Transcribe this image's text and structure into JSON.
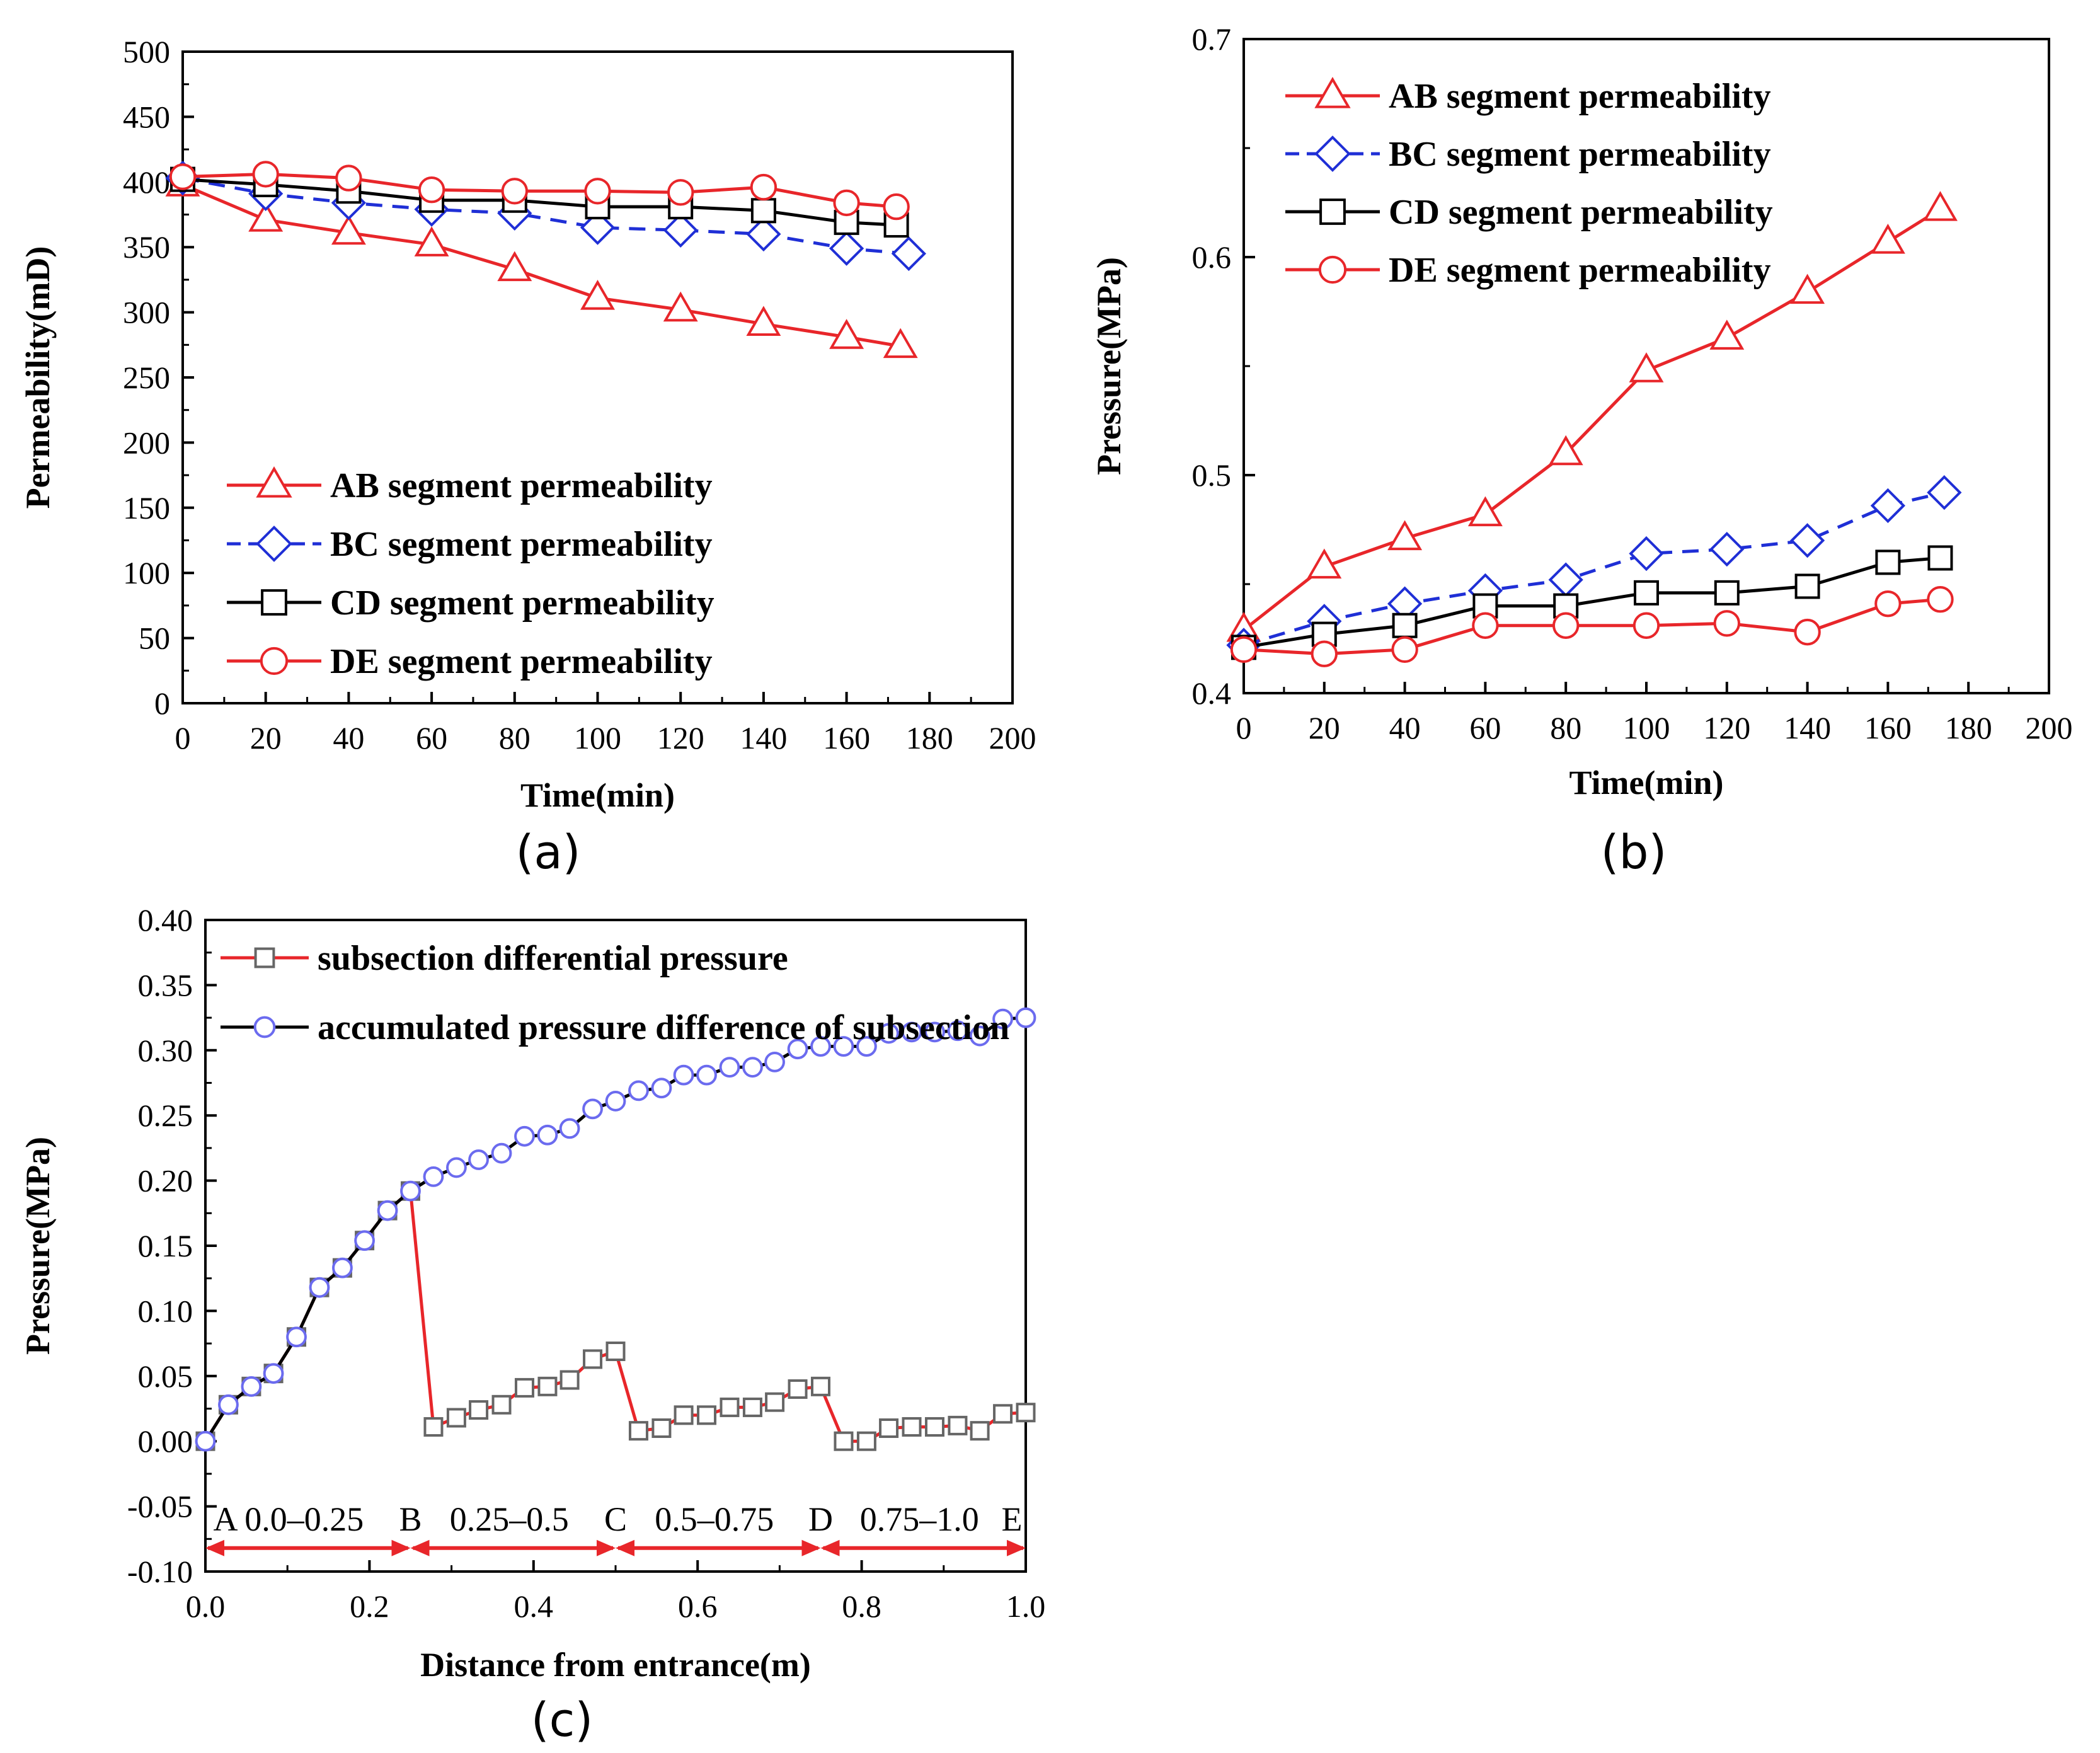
{
  "colors": {
    "red": "#e8262a",
    "blue": "#1f2fd6",
    "black": "#000000",
    "gray": "#666666",
    "circle_blue": "#6b6bef"
  },
  "chart_data": [
    {
      "id": "a",
      "type": "line",
      "caption": "(a)",
      "xlabel": "Time(min)",
      "ylabel": "Permeability(mD)",
      "xlim": [
        0,
        200
      ],
      "ylim": [
        0,
        500
      ],
      "xticks": [
        0,
        20,
        40,
        60,
        80,
        100,
        120,
        140,
        160,
        180,
        200
      ],
      "yticks": [
        0,
        50,
        100,
        150,
        200,
        250,
        300,
        350,
        400,
        450,
        500
      ],
      "legend_position": "bottom-left",
      "series": [
        {
          "name": "AB segment permeability",
          "marker": "triangle",
          "color": "#e8262a",
          "dash": false,
          "x": [
            0,
            20,
            40,
            60,
            80,
            100,
            120,
            140,
            160,
            173
          ],
          "y": [
            398,
            371,
            361,
            352,
            333,
            311,
            302,
            291,
            281,
            274
          ]
        },
        {
          "name": "BC segment permeability",
          "marker": "diamond",
          "color": "#1f2fd6",
          "dash": true,
          "x": [
            0,
            20,
            40,
            60,
            80,
            100,
            120,
            140,
            160,
            175
          ],
          "y": [
            403,
            391,
            384,
            379,
            376,
            365,
            363,
            360,
            349,
            345
          ]
        },
        {
          "name": "CD segment permeability",
          "marker": "square",
          "color": "#000000",
          "dash": false,
          "x": [
            0,
            20,
            40,
            60,
            80,
            100,
            120,
            140,
            160,
            172
          ],
          "y": [
            402,
            398,
            393,
            386,
            386,
            381,
            381,
            378,
            369,
            367
          ]
        },
        {
          "name": "DE segment permeability",
          "marker": "circle",
          "color": "#e8262a",
          "dash": false,
          "x": [
            0,
            20,
            40,
            60,
            80,
            100,
            120,
            140,
            160,
            172
          ],
          "y": [
            404,
            406,
            403,
            394,
            393,
            393,
            392,
            396,
            384,
            381
          ]
        }
      ]
    },
    {
      "id": "b",
      "type": "line",
      "caption": "(b)",
      "xlabel": "Time(min)",
      "ylabel": "Pressure(MPa)",
      "xlim": [
        0,
        200
      ],
      "ylim": [
        0.4,
        0.7
      ],
      "xticks": [
        0,
        20,
        40,
        60,
        80,
        100,
        120,
        140,
        160,
        180,
        200
      ],
      "yticks": [
        0.4,
        0.5,
        0.6,
        0.7
      ],
      "ytick_labels": [
        "0.4",
        "0.5",
        "0.6",
        "0.7"
      ],
      "legend_position": "top-left",
      "series": [
        {
          "name": "AB segment permeability",
          "marker": "triangle",
          "color": "#e8262a",
          "dash": false,
          "x": [
            0,
            20,
            40,
            60,
            80,
            100,
            120,
            140,
            160,
            173
          ],
          "y": [
            0.429,
            0.458,
            0.471,
            0.482,
            0.51,
            0.548,
            0.563,
            0.584,
            0.607,
            0.622
          ]
        },
        {
          "name": "BC segment permeability",
          "marker": "diamond",
          "color": "#1f2fd6",
          "dash": true,
          "x": [
            0,
            20,
            40,
            60,
            80,
            100,
            120,
            140,
            160,
            174
          ],
          "y": [
            0.422,
            0.433,
            0.441,
            0.447,
            0.452,
            0.464,
            0.466,
            0.47,
            0.486,
            0.492
          ]
        },
        {
          "name": "CD segment permeability",
          "marker": "square",
          "color": "#000000",
          "dash": false,
          "x": [
            0,
            20,
            40,
            60,
            80,
            100,
            120,
            140,
            160,
            173
          ],
          "y": [
            0.421,
            0.427,
            0.431,
            0.44,
            0.44,
            0.446,
            0.446,
            0.449,
            0.46,
            0.462
          ]
        },
        {
          "name": "DE segment permeability",
          "marker": "circle",
          "color": "#e8262a",
          "dash": false,
          "x": [
            0,
            20,
            40,
            60,
            80,
            100,
            120,
            140,
            160,
            173
          ],
          "y": [
            0.42,
            0.418,
            0.42,
            0.431,
            0.431,
            0.431,
            0.432,
            0.428,
            0.441,
            0.443
          ]
        }
      ]
    },
    {
      "id": "c",
      "type": "line",
      "caption": "(c)",
      "xlabel": "Distance from entrance(m)",
      "ylabel": "Pressure(MPa)",
      "xlim": [
        0,
        1.0
      ],
      "ylim": [
        -0.1,
        0.4
      ],
      "xticks": [
        0,
        0.2,
        0.4,
        0.6,
        0.8,
        1.0
      ],
      "xtick_labels": [
        "0.0",
        "0.2",
        "0.4",
        "0.6",
        "0.8",
        "1.0"
      ],
      "yticks": [
        -0.1,
        -0.05,
        0,
        0.05,
        0.1,
        0.15,
        0.2,
        0.25,
        0.3,
        0.35,
        0.4
      ],
      "ytick_labels": [
        "-0.10",
        "-0.05",
        "0.00",
        "0.05",
        "0.10",
        "0.15",
        "0.20",
        "0.25",
        "0.30",
        "0.35",
        "0.40"
      ],
      "legend_position": "top-left",
      "series": [
        {
          "name": "subsection differential pressure",
          "marker": "square",
          "line_color": "#e8262a",
          "marker_color": "#666666",
          "x": [
            0,
            0.028,
            0.056,
            0.083,
            0.111,
            0.139,
            0.167,
            0.194,
            0.222,
            0.25,
            0.278,
            0.306,
            0.333,
            0.361,
            0.389,
            0.417,
            0.444,
            0.472,
            0.5,
            0.528,
            0.556,
            0.583,
            0.611,
            0.639,
            0.667,
            0.694,
            0.722,
            0.75,
            0.778,
            0.806,
            0.833,
            0.861,
            0.889,
            0.917,
            0.944,
            0.972,
            1.0
          ],
          "y": [
            0,
            0.028,
            0.042,
            0.052,
            0.08,
            0.118,
            0.133,
            0.154,
            0.177,
            0.192,
            0.011,
            0.018,
            0.024,
            0.028,
            0.041,
            0.042,
            0.047,
            0.063,
            0.069,
            0.008,
            0.01,
            0.02,
            0.02,
            0.026,
            0.026,
            0.03,
            0.04,
            0.042,
            0.0,
            0.0,
            0.01,
            0.011,
            0.011,
            0.012,
            0.008,
            0.021,
            0.022
          ]
        },
        {
          "name": "accumulated pressure difference of subsection",
          "marker": "circle",
          "line_color": "#000000",
          "marker_color": "#6b6bef",
          "x": [
            0,
            0.028,
            0.056,
            0.083,
            0.111,
            0.139,
            0.167,
            0.194,
            0.222,
            0.25,
            0.278,
            0.306,
            0.333,
            0.361,
            0.389,
            0.417,
            0.444,
            0.472,
            0.5,
            0.528,
            0.556,
            0.583,
            0.611,
            0.639,
            0.667,
            0.694,
            0.722,
            0.75,
            0.778,
            0.806,
            0.833,
            0.861,
            0.889,
            0.917,
            0.944,
            0.972,
            1.0
          ],
          "y": [
            0,
            0.028,
            0.042,
            0.052,
            0.08,
            0.118,
            0.133,
            0.154,
            0.177,
            0.192,
            0.203,
            0.21,
            0.216,
            0.221,
            0.234,
            0.235,
            0.24,
            0.255,
            0.261,
            0.269,
            0.271,
            0.281,
            0.281,
            0.287,
            0.287,
            0.291,
            0.301,
            0.303,
            0.303,
            0.303,
            0.313,
            0.314,
            0.314,
            0.315,
            0.311,
            0.324,
            0.325
          ]
        }
      ],
      "segments": {
        "y": -0.082,
        "point_labels": [
          "A",
          "B",
          "C",
          "D",
          "E"
        ],
        "point_x": [
          0,
          0.25,
          0.5,
          0.75,
          1.0
        ],
        "range_labels": [
          "0.0–0.25",
          "0.25–0.5",
          "0.5–0.75",
          "0.75–1.0"
        ]
      }
    }
  ]
}
